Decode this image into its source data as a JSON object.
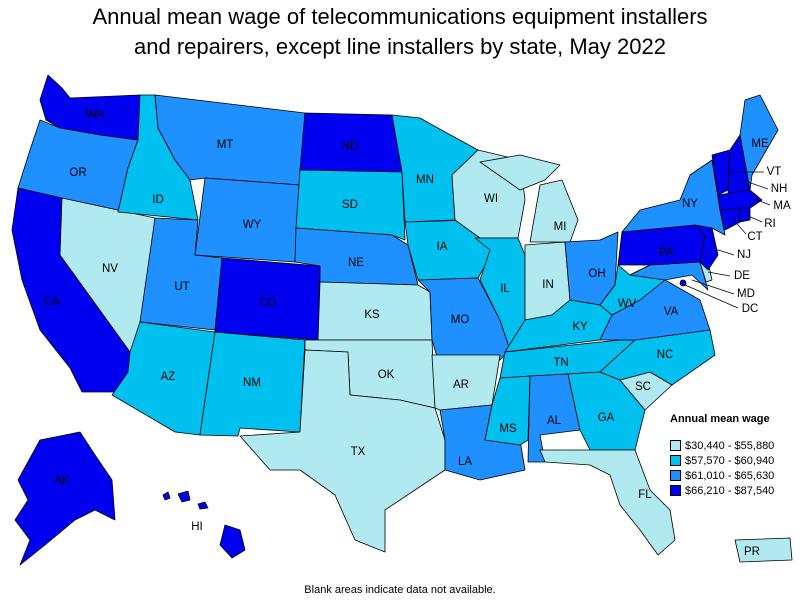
{
  "title": "Annual mean wage of telecommunications equipment installers\nand repairers, except line installers by state, May 2022",
  "footnote": "Blank areas indicate data not available.",
  "legend": {
    "title": "Annual mean wage",
    "bins": [
      {
        "label": "$30,440 - $55,880",
        "color": "#b0eaf0"
      },
      {
        "label": "$57,570 - $60,940",
        "color": "#00c0f0"
      },
      {
        "label": "$61,010 - $65,630",
        "color": "#1e90ff"
      },
      {
        "label": "$66,210 - $87,540",
        "color": "#0000f0"
      }
    ]
  },
  "states": {
    "WA": 3,
    "OR": 2,
    "CA": 3,
    "NV": 0,
    "ID": 1,
    "MT": 2,
    "WY": 2,
    "UT": 2,
    "AZ": 1,
    "CO": 3,
    "NM": 1,
    "ND": 3,
    "SD": 1,
    "NE": 2,
    "KS": 0,
    "OK": 0,
    "TX": 0,
    "MN": 1,
    "IA": 1,
    "MO": 2,
    "AR": 0,
    "LA": 2,
    "WI": 0,
    "IL": 1,
    "MI": 0,
    "IN": 0,
    "OH": 2,
    "KY": 1,
    "TN": 1,
    "MS": 1,
    "AL": 2,
    "GA": 1,
    "FL": 0,
    "SC": 0,
    "NC": 1,
    "VA": 2,
    "WV": 1,
    "PA": 3,
    "NY": 2,
    "ME": 2,
    "VT": 3,
    "NH": 3,
    "MA": 3,
    "RI": 3,
    "CT": 3,
    "NJ": 3,
    "DE": 0,
    "MD": 2,
    "DC": 3,
    "AK": 3,
    "HI": 3,
    "PR": 0
  }
}
